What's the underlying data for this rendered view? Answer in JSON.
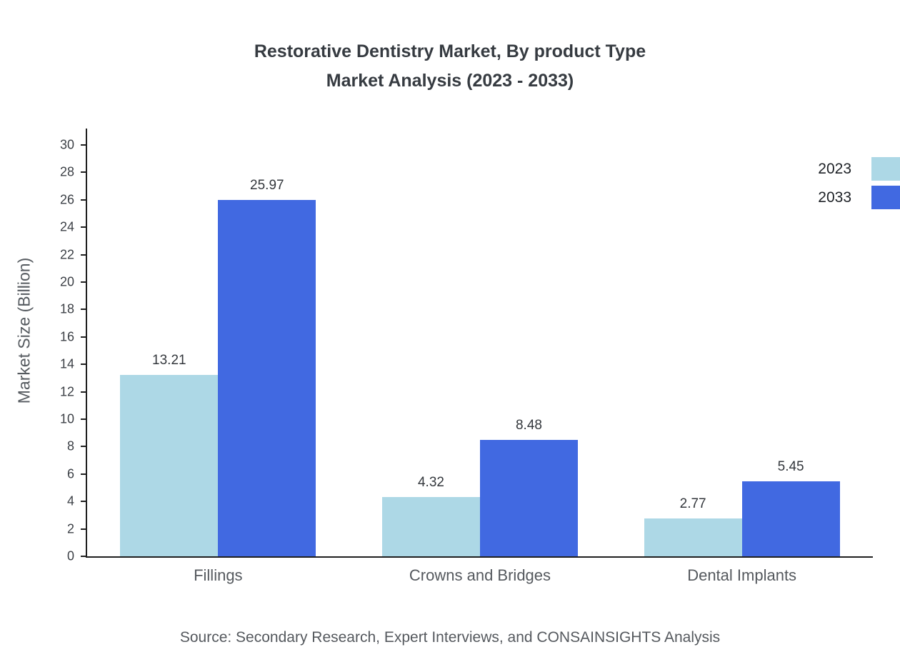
{
  "header": {
    "title_line1": "Restorative Dentistry Market, By product Type",
    "title_line2": "Market Analysis (2023 - 2033)"
  },
  "footer": {
    "source": "Source: Secondary Research, Expert Interviews, and CONSAINSIGHTS Analysis"
  },
  "chart_data": {
    "type": "bar",
    "title": "Restorative Dentistry Market, By product Type Market Analysis (2023 - 2033)",
    "categories": [
      "Fillings",
      "Crowns and Bridges",
      "Dental Implants"
    ],
    "series": [
      {
        "name": "2023",
        "color": "#add8e6",
        "values": [
          13.21,
          4.32,
          2.77
        ]
      },
      {
        "name": "2033",
        "color": "#4169e1",
        "values": [
          25.97,
          8.48,
          5.45
        ]
      }
    ],
    "xlabel": "",
    "ylabel": "Market Size (Billion)",
    "ylim": [
      0,
      30
    ],
    "ytick_step": 2,
    "grid": false,
    "legend_position": "top-right",
    "value_label_decimals": 2,
    "axis_color": "#1f1f1f"
  }
}
